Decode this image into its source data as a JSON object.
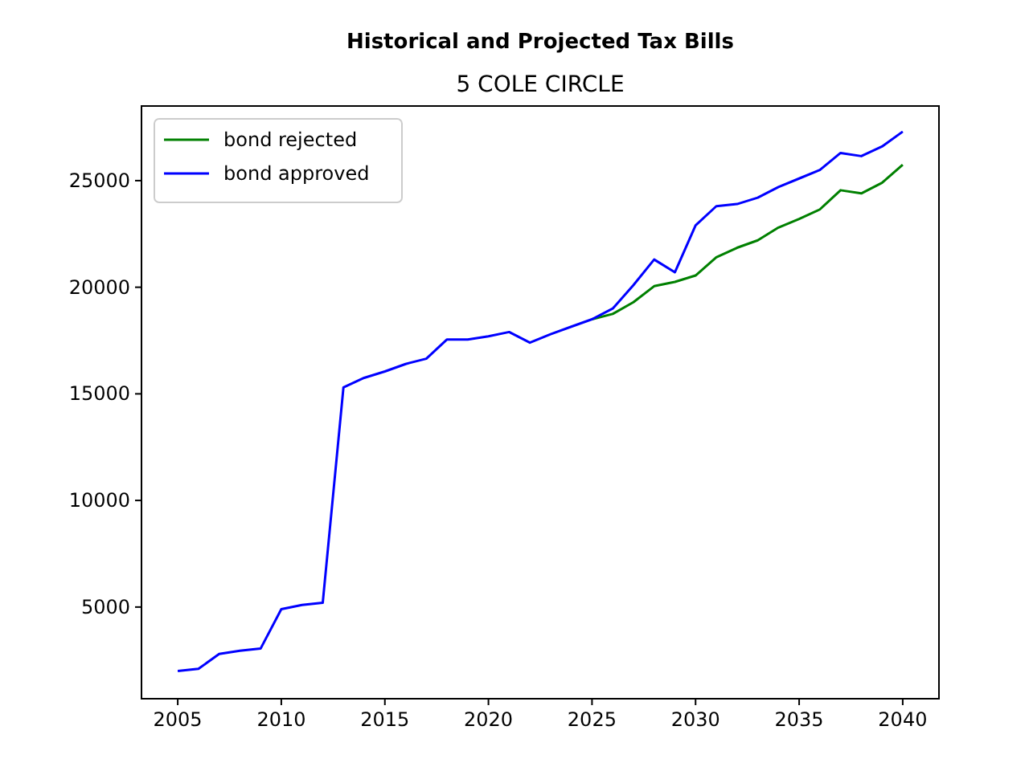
{
  "chart_data": {
    "type": "line",
    "title": "Historical and Projected Tax Bills",
    "subtitle": "5 COLE CIRCLE",
    "x": [
      2005,
      2006,
      2007,
      2008,
      2009,
      2010,
      2011,
      2012,
      2013,
      2014,
      2015,
      2016,
      2017,
      2018,
      2019,
      2020,
      2021,
      2022,
      2023,
      2024,
      2025,
      2026,
      2027,
      2028,
      2029,
      2030,
      2031,
      2032,
      2033,
      2034,
      2035,
      2036,
      2037,
      2038,
      2039,
      2040
    ],
    "series": [
      {
        "name": "bond rejected",
        "color": "#008000",
        "values": [
          null,
          null,
          null,
          null,
          null,
          null,
          null,
          null,
          null,
          null,
          null,
          null,
          null,
          null,
          null,
          null,
          null,
          null,
          null,
          null,
          18500,
          18750,
          19300,
          20050,
          20250,
          20550,
          21400,
          21850,
          22200,
          22800,
          23200,
          23650,
          24550,
          24400,
          24900,
          25750
        ]
      },
      {
        "name": "bond approved",
        "color": "#0000ff",
        "values": [
          2000,
          2100,
          2800,
          2950,
          3050,
          4900,
          5100,
          5200,
          15300,
          15750,
          16050,
          16400,
          16650,
          17550,
          17550,
          17700,
          17900,
          17400,
          17800,
          18150,
          18500,
          19000,
          20100,
          21300,
          20700,
          22900,
          23800,
          23900,
          24200,
          24700,
          25100,
          25500,
          26300,
          26150,
          26600,
          27300
        ]
      }
    ],
    "xlim": [
      2003.25,
      2041.75
    ],
    "ylim": [
      700,
      28500
    ],
    "xticks": [
      2005,
      2010,
      2015,
      2020,
      2025,
      2030,
      2035,
      2040
    ],
    "yticks": [
      5000,
      10000,
      15000,
      20000,
      25000
    ],
    "legend": "top left",
    "grid": false
  }
}
